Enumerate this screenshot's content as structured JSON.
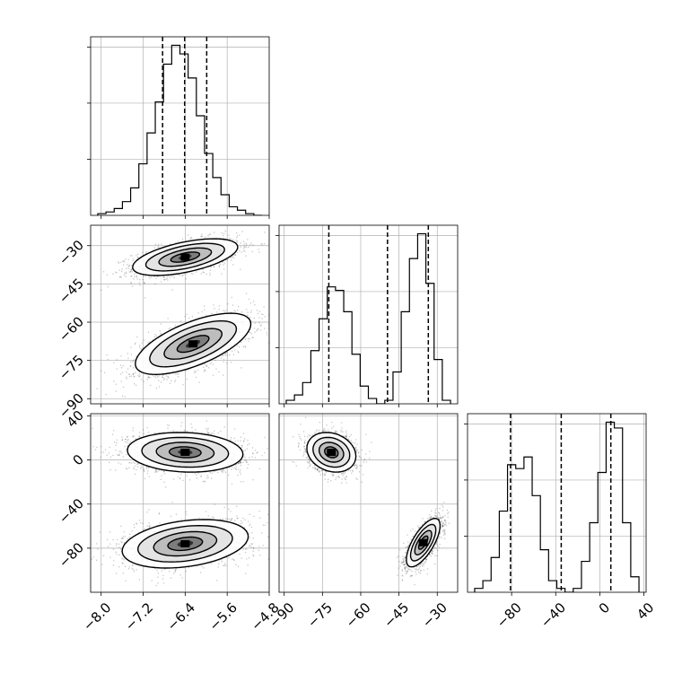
{
  "chart_data": {
    "type": "corner",
    "parameters": [
      {
        "range": [
          -8.2,
          -4.8
        ],
        "ticks": [
          -8.0,
          -7.2,
          -6.4,
          -5.6,
          -4.8
        ],
        "tick_labels": [
          "−8.0",
          "−7.2",
          "−6.4",
          "−5.6",
          "−4.8"
        ],
        "quantiles": [
          -6.83,
          -6.41,
          -5.99
        ],
        "histogram": [
          1,
          2,
          4,
          8,
          16,
          30,
          48,
          66,
          88,
          99,
          94,
          80,
          58,
          36,
          22,
          12,
          5,
          3,
          1,
          0
        ]
      },
      {
        "range": [
          -92,
          -22
        ],
        "ticks": [
          -90,
          -75,
          -60,
          -45,
          -30
        ],
        "tick_labels": [
          "−90",
          "−75",
          "−60",
          "−45",
          "−30"
        ],
        "quantiles": [
          -72.5,
          -49.5,
          -33.5
        ],
        "histogram": [
          2,
          5,
          12,
          30,
          48,
          66,
          64,
          52,
          28,
          10,
          3,
          0,
          2,
          18,
          52,
          82,
          96,
          68,
          25,
          2
        ]
      },
      {
        "range": [
          -120,
          42
        ],
        "ticks": [
          -80,
          -40,
          0,
          40
        ],
        "tick_labels": [
          "−80",
          "−40",
          "0",
          "40"
        ],
        "quantiles": [
          -81,
          -35,
          10
        ],
        "histogram": [
          2,
          6,
          18,
          42,
          66,
          64,
          70,
          50,
          22,
          6,
          2,
          0,
          2,
          16,
          36,
          62,
          88,
          85,
          36,
          8
        ]
      }
    ],
    "pairs": [
      {
        "row": 1,
        "col": 0,
        "clusters": [
          {
            "cx": -6.4,
            "cy": -34.5,
            "sx": 0.5,
            "sy": 3.6,
            "rho": 0.55,
            "n": 1800
          },
          {
            "cx": -6.25,
            "cy": -68.5,
            "sx": 0.55,
            "sy": 6.0,
            "rho": 0.65,
            "n": 1800
          }
        ]
      },
      {
        "row": 2,
        "col": 0,
        "clusters": [
          {
            "cx": -6.4,
            "cy": 7,
            "sx": 0.55,
            "sy": 9,
            "rho": -0.1,
            "n": 1800
          },
          {
            "cx": -6.4,
            "cy": -76,
            "sx": 0.6,
            "sy": 11,
            "rho": 0.3,
            "n": 1800
          }
        ]
      },
      {
        "row": 2,
        "col": 1,
        "clusters": [
          {
            "cx": -71.5,
            "cy": 7,
            "sx": 4.8,
            "sy": 9,
            "rho": -0.2,
            "n": 1800
          },
          {
            "cx": -35.5,
            "cy": -75,
            "sx": 3.3,
            "sy": 11,
            "rho": 0.7,
            "n": 1800
          }
        ]
      }
    ],
    "grid": true,
    "title": "",
    "axis_labels": [
      "",
      "",
      ""
    ]
  }
}
